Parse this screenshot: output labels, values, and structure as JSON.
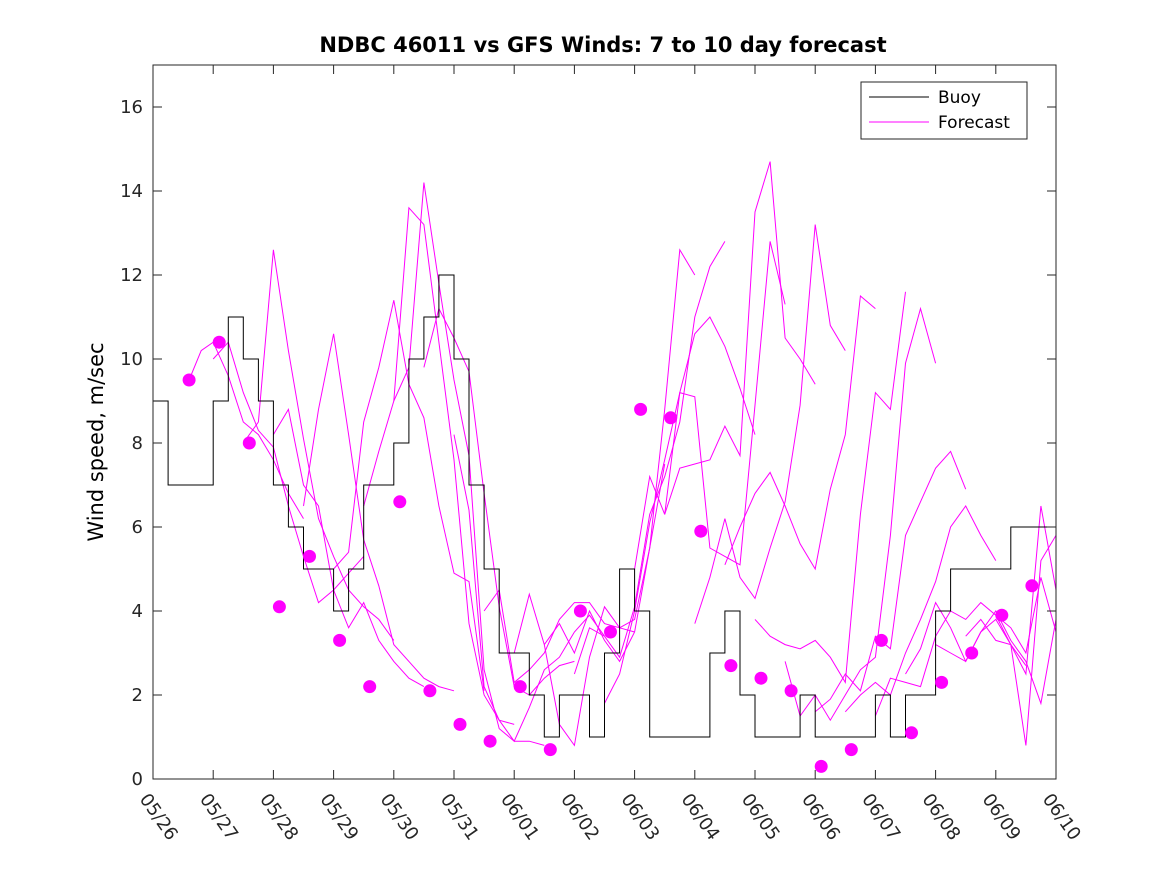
{
  "chart_data": {
    "type": "line",
    "title": "NDBC 46011 vs GFS Winds: 7 to 10 day forecast",
    "xlabel": "",
    "ylabel": "Wind speed, m/sec",
    "x_tick_labels": [
      "05/26",
      "05/27",
      "05/28",
      "05/29",
      "05/30",
      "05/31",
      "06/01",
      "06/02",
      "06/03",
      "06/04",
      "06/05",
      "06/06",
      "06/07",
      "06/08",
      "06/09",
      "06/10"
    ],
    "y_tick_values": [
      0,
      2,
      4,
      6,
      8,
      10,
      12,
      14,
      16
    ],
    "xlim": [
      0,
      15
    ],
    "ylim": [
      0,
      17
    ],
    "grid": false,
    "legend_position": "top-right",
    "colors": {
      "buoy": "#000000",
      "forecast": "#ff00ff"
    },
    "legend": [
      {
        "label": "Buoy",
        "color": "#000000"
      },
      {
        "label": "Forecast",
        "color": "#ff00ff"
      }
    ],
    "buoy": {
      "name": "Buoy",
      "x": [
        0,
        0.25,
        0.5,
        0.75,
        1,
        1.25,
        1.5,
        1.75,
        2,
        2.25,
        2.5,
        2.75,
        3,
        3.25,
        3.5,
        3.75,
        4,
        4.25,
        4.5,
        4.75,
        5,
        5.25,
        5.5,
        5.75,
        6,
        6.25,
        6.5,
        6.75,
        7,
        7.25,
        7.5,
        7.75,
        8,
        8.25,
        8.5,
        8.75,
        9,
        9.25,
        9.5,
        9.75,
        10,
        10.25,
        10.5,
        10.75,
        11,
        11.25,
        11.5,
        11.75,
        12,
        12.25,
        12.5,
        12.75,
        13,
        13.25,
        13.5,
        13.75,
        14,
        14.25,
        14.5,
        14.75
      ],
      "y": [
        9,
        7,
        7,
        7,
        9,
        11,
        10,
        9,
        7,
        6,
        5,
        5,
        4,
        5,
        7,
        7,
        8,
        10,
        11,
        12,
        10,
        7,
        5,
        3,
        3,
        2,
        1,
        2,
        2,
        1,
        3,
        5,
        4,
        1,
        1,
        1,
        1,
        3,
        4,
        2,
        1,
        1,
        1,
        2,
        1,
        1,
        1,
        1,
        2,
        1,
        2,
        2,
        4,
        5,
        5,
        5,
        5,
        6,
        6,
        6
      ]
    },
    "forecast_series": [
      {
        "x": [
          0.6,
          0.8,
          1.0,
          1.25,
          1.5,
          1.75,
          2.0,
          2.25,
          2.5
        ],
        "y": [
          9.5,
          10.2,
          10.4,
          9.6,
          8.5,
          8.2,
          7.6,
          6.8,
          6.2
        ]
      },
      {
        "x": [
          1.0,
          1.25,
          1.5,
          1.75,
          2.0,
          2.25,
          2.5,
          2.75,
          3.0,
          3.25,
          3.5
        ],
        "y": [
          10.0,
          10.4,
          9.2,
          8.3,
          7.9,
          6.5,
          5.3,
          4.2,
          4.5,
          4.9,
          5.3
        ]
      },
      {
        "x": [
          1.5,
          1.75,
          2.0,
          2.25,
          2.5,
          2.75,
          3.0,
          3.25,
          3.5,
          3.75,
          4.0
        ],
        "y": [
          8.0,
          8.5,
          12.6,
          10.2,
          8.1,
          6.2,
          5.3,
          4.5,
          4.1,
          3.8,
          3.3
        ]
      },
      {
        "x": [
          2.0,
          2.25,
          2.5,
          2.75,
          3.0,
          3.25,
          3.5,
          3.75,
          4.0,
          4.25,
          4.5
        ],
        "y": [
          8.2,
          8.8,
          7.0,
          6.5,
          4.5,
          3.6,
          4.2,
          3.3,
          2.8,
          2.4,
          2.2
        ]
      },
      {
        "x": [
          2.5,
          2.75,
          3.0,
          3.25,
          3.5,
          3.75,
          4.0,
          4.25,
          4.5,
          4.75,
          5.0
        ],
        "y": [
          6.5,
          8.8,
          10.6,
          8.2,
          5.7,
          4.6,
          3.2,
          2.8,
          2.4,
          2.2,
          2.1
        ]
      },
      {
        "x": [
          3.0,
          3.25,
          3.5,
          3.75,
          4.0,
          4.25,
          4.5,
          4.75,
          5.0,
          5.25,
          5.5
        ],
        "y": [
          5.0,
          5.4,
          8.5,
          9.8,
          11.4,
          9.4,
          8.6,
          6.5,
          4.9,
          4.7,
          2.1
        ]
      },
      {
        "x": [
          3.5,
          3.75,
          4.0,
          4.25,
          4.5,
          4.75,
          5.0,
          5.25,
          5.5,
          5.75,
          6.0
        ],
        "y": [
          6.5,
          7.8,
          9.0,
          13.6,
          13.2,
          10.4,
          7.6,
          3.7,
          2.0,
          1.4,
          1.3
        ]
      },
      {
        "x": [
          4.0,
          4.25,
          4.5,
          4.75,
          5.0,
          5.25,
          5.5,
          5.75,
          6.0,
          6.25,
          6.5
        ],
        "y": [
          9.0,
          9.8,
          14.2,
          11.8,
          9.5,
          7.7,
          2.6,
          1.2,
          0.9,
          0.9,
          0.8
        ]
      },
      {
        "x": [
          4.5,
          4.75,
          5.0,
          5.25,
          5.5,
          5.75,
          6.0,
          6.25,
          6.5,
          6.75,
          7.0
        ],
        "y": [
          9.8,
          11.2,
          10.5,
          9.7,
          6.8,
          4.1,
          2.2,
          2.0,
          2.4,
          2.7,
          2.8
        ]
      },
      {
        "x": [
          5.0,
          5.25,
          5.5,
          5.75,
          6.0,
          6.25,
          6.5,
          6.75,
          7.0,
          7.25,
          7.5
        ],
        "y": [
          8.2,
          6.4,
          2.2,
          1.4,
          0.9,
          1.7,
          2.6,
          2.9,
          3.5,
          3.9,
          3.4
        ]
      },
      {
        "x": [
          5.5,
          5.75,
          6.0,
          6.25,
          6.5,
          6.75,
          7.0,
          7.25,
          7.5,
          7.75,
          8.0
        ],
        "y": [
          4.0,
          4.5,
          2.3,
          2.6,
          3.0,
          3.8,
          4.2,
          4.2,
          3.7,
          3.6,
          3.5
        ]
      },
      {
        "x": [
          6.0,
          6.25,
          6.5,
          6.75,
          7.0,
          7.25,
          7.5,
          7.75,
          8.0,
          8.25,
          8.5
        ],
        "y": [
          3.0,
          4.4,
          3.2,
          1.3,
          0.8,
          2.9,
          4.1,
          3.6,
          3.8,
          5.5,
          7.5
        ]
      },
      {
        "x": [
          6.5,
          6.75,
          7.0,
          7.25,
          7.5,
          7.75,
          8.0,
          8.25,
          8.5,
          8.75,
          9.0
        ],
        "y": [
          3.2,
          3.7,
          3.0,
          4.0,
          3.3,
          2.8,
          3.5,
          5.5,
          8.8,
          12.6,
          12.0
        ]
      },
      {
        "x": [
          7.0,
          7.25,
          7.5,
          7.75,
          8.0,
          8.25,
          8.5,
          8.75,
          9.0,
          9.25,
          9.5
        ],
        "y": [
          2.5,
          3.6,
          3.4,
          2.9,
          4.1,
          6.3,
          7.2,
          8.5,
          11.0,
          12.2,
          12.8
        ]
      },
      {
        "x": [
          7.5,
          7.75,
          8.0,
          8.25,
          8.5,
          8.75,
          9.0,
          9.25,
          9.5,
          9.75,
          10.0
        ],
        "y": [
          1.8,
          2.5,
          4.0,
          6.1,
          7.6,
          9.2,
          10.6,
          11.0,
          10.3,
          9.3,
          8.2
        ]
      },
      {
        "x": [
          8.0,
          8.25,
          8.5,
          8.75,
          9.0,
          9.25,
          9.5,
          9.75,
          10.0,
          10.25,
          10.5
        ],
        "y": [
          5.0,
          7.2,
          6.3,
          9.2,
          9.1,
          5.5,
          5.3,
          5.1,
          8.9,
          12.8,
          11.3
        ]
      },
      {
        "x": [
          8.5,
          8.75,
          9.0,
          9.25,
          9.5,
          9.75,
          10.0,
          10.25,
          10.5,
          10.75,
          11.0
        ],
        "y": [
          6.3,
          7.4,
          7.5,
          7.6,
          8.4,
          7.7,
          13.5,
          14.7,
          10.5,
          10.0,
          9.4
        ]
      },
      {
        "x": [
          9.0,
          9.25,
          9.5,
          9.75,
          10.0,
          10.25,
          10.5,
          10.75,
          11.0,
          11.25,
          11.5
        ],
        "y": [
          3.7,
          4.8,
          6.2,
          4.8,
          4.3,
          5.5,
          6.6,
          8.9,
          13.2,
          10.8,
          10.2
        ]
      },
      {
        "x": [
          9.5,
          9.75,
          10.0,
          10.25,
          10.5,
          10.75,
          11.0,
          11.25,
          11.5,
          11.75,
          12.0
        ],
        "y": [
          5.1,
          6.0,
          6.8,
          7.3,
          6.5,
          5.6,
          5.0,
          6.9,
          8.2,
          11.5,
          11.2
        ]
      },
      {
        "x": [
          10.0,
          10.25,
          10.5,
          10.75,
          11.0,
          11.25,
          11.5,
          11.75,
          12.0,
          12.25,
          12.5
        ],
        "y": [
          3.8,
          3.4,
          3.2,
          3.1,
          3.3,
          2.9,
          2.3,
          6.3,
          9.2,
          8.8,
          11.6
        ]
      },
      {
        "x": [
          10.5,
          10.75,
          11.0,
          11.25,
          11.5,
          11.75,
          12.0,
          12.25,
          12.5,
          12.75,
          13.0
        ],
        "y": [
          2.8,
          1.5,
          2.0,
          1.4,
          2.0,
          2.6,
          2.9,
          5.8,
          9.9,
          11.2,
          9.9
        ]
      },
      {
        "x": [
          11.0,
          11.25,
          11.5,
          11.75,
          12.0,
          12.25,
          12.5,
          12.75,
          13.0,
          13.25,
          13.5
        ],
        "y": [
          1.6,
          1.9,
          2.5,
          2.1,
          3.4,
          3.1,
          5.8,
          6.6,
          7.4,
          7.8,
          6.9
        ]
      },
      {
        "x": [
          11.5,
          11.75,
          12.0,
          12.25,
          12.5,
          12.75,
          13.0,
          13.25,
          13.5,
          13.75,
          14.0
        ],
        "y": [
          1.6,
          2.0,
          2.3,
          2.0,
          3.0,
          3.8,
          4.7,
          6.0,
          6.5,
          5.8,
          5.2
        ]
      },
      {
        "x": [
          12.0,
          12.25,
          12.5,
          12.75,
          13.0,
          13.25,
          13.5,
          13.75,
          14.0,
          14.25,
          14.5
        ],
        "y": [
          1.5,
          2.4,
          2.3,
          2.2,
          3.4,
          4.0,
          3.8,
          4.2,
          3.9,
          3.2,
          2.7
        ]
      },
      {
        "x": [
          12.5,
          12.75,
          13.0,
          13.25,
          13.5,
          13.75,
          14.0,
          14.25,
          14.5,
          14.75,
          15.0
        ],
        "y": [
          2.5,
          3.1,
          4.2,
          3.6,
          2.8,
          3.5,
          3.8,
          3.2,
          2.5,
          6.5,
          4.5
        ]
      },
      {
        "x": [
          13.0,
          13.25,
          13.5,
          13.75,
          14.0,
          14.25,
          14.5,
          14.75,
          15.0
        ],
        "y": [
          3.2,
          3.0,
          2.8,
          3.5,
          4.0,
          3.3,
          2.8,
          1.8,
          3.8
        ]
      },
      {
        "x": [
          13.5,
          13.75,
          14.0,
          14.25,
          14.5,
          14.75,
          15.0
        ],
        "y": [
          3.4,
          3.8,
          3.3,
          3.2,
          0.8,
          5.2,
          5.8
        ]
      },
      {
        "x": [
          14.0,
          14.25,
          14.5,
          14.75,
          15.0
        ],
        "y": [
          3.9,
          3.6,
          3.0,
          4.8,
          3.5
        ]
      }
    ],
    "forecast_markers": {
      "x": [
        0.6,
        1.1,
        1.6,
        2.1,
        2.6,
        3.1,
        3.6,
        4.1,
        4.6,
        5.1,
        5.6,
        6.1,
        6.6,
        7.1,
        7.6,
        8.1,
        8.6,
        9.1,
        9.6,
        10.1,
        10.6,
        11.1,
        11.6,
        12.1,
        12.6,
        13.1,
        13.6,
        14.1,
        14.6
      ],
      "y": [
        9.5,
        10.4,
        8.0,
        4.1,
        5.3,
        3.3,
        2.2,
        6.6,
        2.1,
        1.3,
        0.9,
        2.2,
        0.7,
        4.0,
        3.5,
        8.8,
        8.6,
        5.9,
        2.7,
        2.4,
        2.1,
        0.3,
        0.7,
        3.3,
        1.1,
        2.3,
        3.0,
        3.9,
        4.6
      ]
    }
  }
}
